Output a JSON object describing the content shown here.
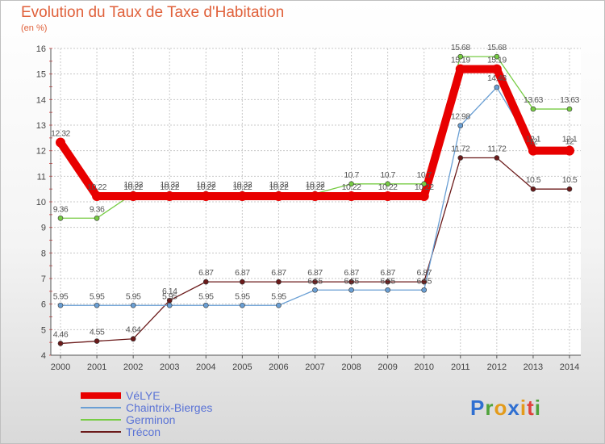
{
  "title": "Evolution du Taux de Taxe d'Habitation",
  "subtitle": "(en %)",
  "logo": {
    "text": "Proxiti",
    "letter_colors": [
      "#2f6fd1",
      "#4fa33b",
      "#e39b1b",
      "#2f6fd1",
      "#e39b1b",
      "#e0413a",
      "#4fa33b"
    ]
  },
  "chart_data": {
    "type": "line",
    "x": [
      "2000",
      "2001",
      "2002",
      "2003",
      "2004",
      "2005",
      "2006",
      "2007",
      "2008",
      "2009",
      "2010",
      "2011",
      "2012",
      "2013",
      "2014"
    ],
    "ylim": [
      4,
      16
    ],
    "yticks": [
      "4",
      "5",
      "6",
      "7",
      "8",
      "9",
      "10",
      "11",
      "12",
      "13",
      "14",
      "15",
      "16"
    ],
    "grid": true,
    "legend_position": "bottom-left",
    "series": [
      {
        "name": "Trécon",
        "color": "#6b1a1a",
        "values": [
          4.46,
          4.55,
          4.64,
          6.14,
          6.87,
          6.87,
          6.87,
          6.87,
          6.87,
          6.87,
          6.87,
          11.72,
          11.72,
          10.5,
          10.5
        ],
        "labels": [
          "4.46",
          "4.55",
          "4.64",
          "6.14",
          "6.87",
          "6.87",
          "6.87",
          "6.87",
          "6.87",
          "6.87",
          "6.87",
          "11.72",
          "11.72",
          "10.5",
          "10.5"
        ]
      },
      {
        "name": "Germinon",
        "color": "#77cc44",
        "values": [
          9.36,
          9.36,
          10.32,
          10.32,
          10.32,
          10.32,
          10.32,
          10.32,
          10.7,
          10.7,
          10.7,
          15.68,
          15.68,
          13.63,
          13.63
        ],
        "labels": [
          "9.36",
          "9.36",
          "10.32",
          "10.32",
          "10.32",
          "10.32",
          "10.32",
          "10.32",
          "10.7",
          "10.7",
          "10.7",
          "15.68",
          "15.68",
          "13.63",
          "13.63"
        ]
      },
      {
        "name": "Chaintrix-Bierges",
        "color": "#6a9fd4",
        "values": [
          5.95,
          5.95,
          5.95,
          5.95,
          5.95,
          5.95,
          5.95,
          6.55,
          6.55,
          6.55,
          6.55,
          12.98,
          14.48,
          12.1,
          12.1
        ],
        "labels": [
          "5.95",
          "5.95",
          "5.95",
          "5.95",
          "5.95",
          "5.95",
          "5.95",
          "6.55",
          "6.55",
          "6.55",
          "6.55",
          "12.98",
          "14.48",
          "12.1",
          "12.1"
        ]
      },
      {
        "name": "VéLYE",
        "color": "#e80000",
        "values": [
          12.32,
          10.22,
          10.22,
          10.22,
          10.22,
          10.22,
          10.22,
          10.22,
          10.22,
          10.22,
          10.22,
          15.19,
          15.19,
          12.0,
          12.0
        ],
        "labels": [
          "12.32",
          "10.22",
          "10.22",
          "10.22",
          "10.22",
          "10.22",
          "10.22",
          "10.22",
          "10.22",
          "10.22",
          "10.22",
          "15.19",
          "15.19",
          "12",
          "12"
        ]
      }
    ],
    "legend_order": [
      "VéLYE",
      "Chaintrix-Bierges",
      "Germinon",
      "Trécon"
    ]
  }
}
